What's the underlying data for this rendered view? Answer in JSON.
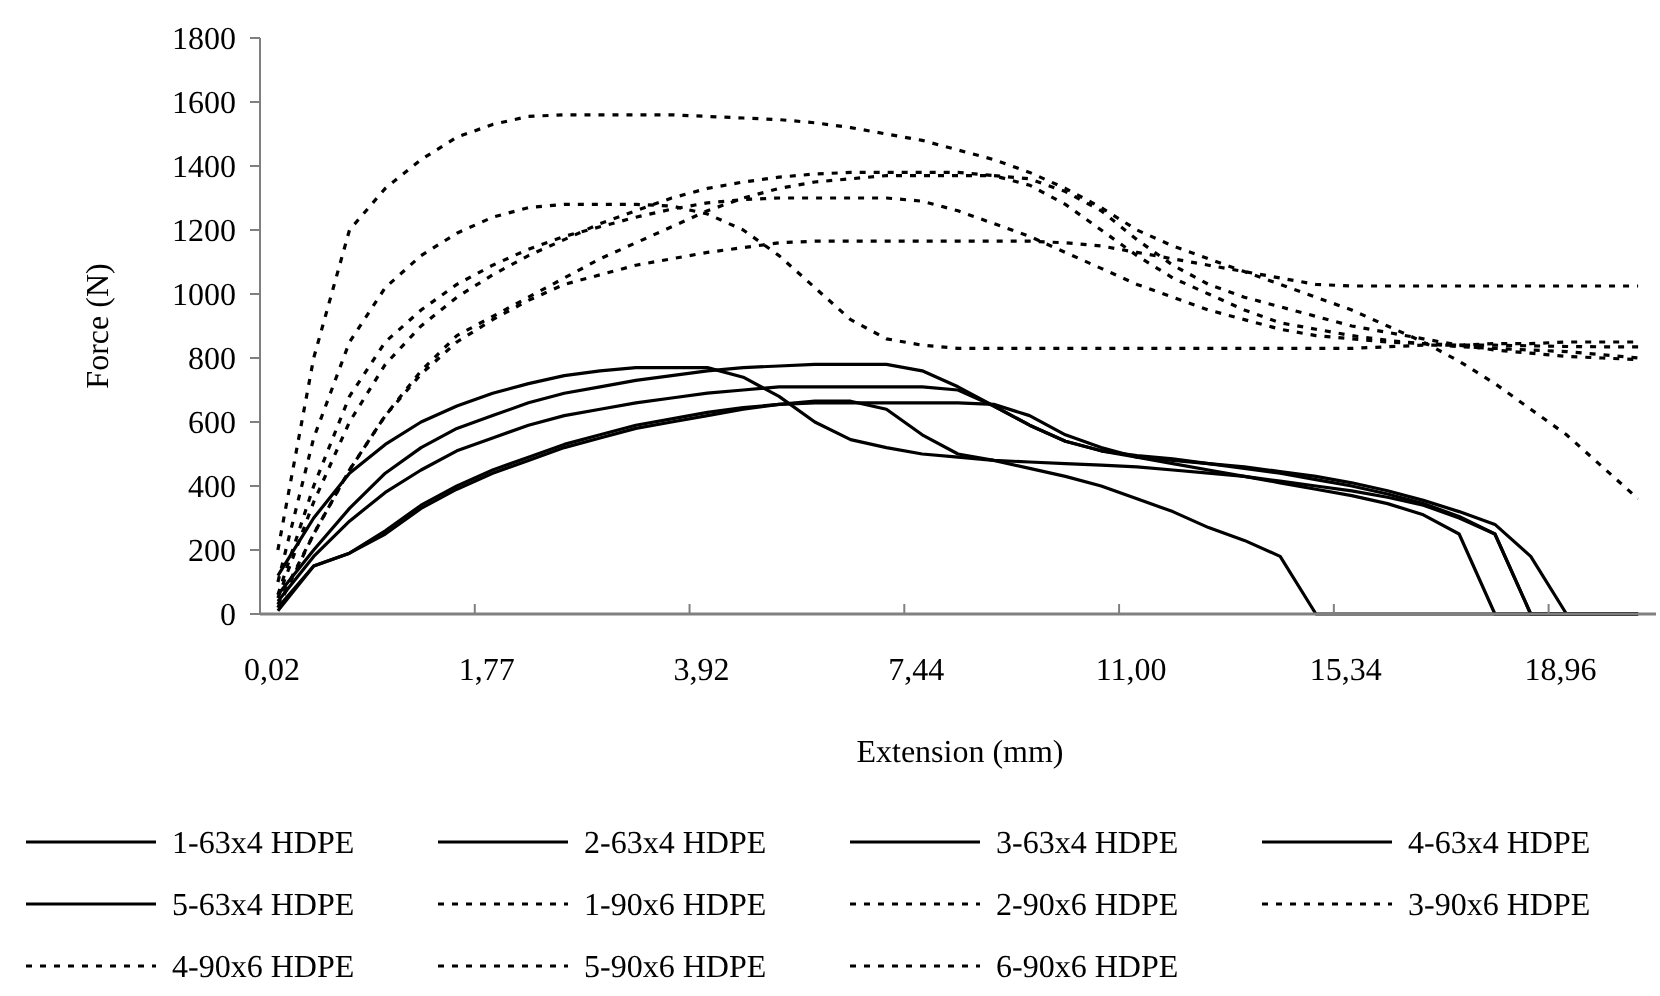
{
  "chart_data": {
    "type": "line",
    "xlabel": "Extension (mm)",
    "ylabel": "Force (N)",
    "categories": [
      "0,02",
      null,
      null,
      null,
      null,
      null,
      "1,77",
      null,
      null,
      null,
      null,
      null,
      "3,92",
      null,
      null,
      null,
      null,
      null,
      "7,44",
      null,
      null,
      null,
      null,
      null,
      "11,00",
      null,
      null,
      null,
      null,
      null,
      "15,34",
      null,
      null,
      null,
      null,
      null,
      "18,96",
      null,
      null
    ],
    "ylim": [
      0,
      1800
    ],
    "yticks": [
      0,
      200,
      400,
      600,
      800,
      1000,
      1200,
      1400,
      1600,
      1800
    ],
    "legend": "bottom",
    "series": [
      {
        "name": "1-63x4 HDPE",
        "color": "#000000",
        "line_style": "solid",
        "values": [
          120,
          300,
          440,
          530,
          600,
          650,
          690,
          720,
          745,
          760,
          770,
          770,
          770,
          740,
          680,
          600,
          545,
          520,
          500,
          490,
          480,
          455,
          430,
          400,
          360,
          320,
          270,
          230,
          180,
          0,
          0,
          0,
          0,
          0,
          0,
          0,
          0,
          0,
          0
        ]
      },
      {
        "name": "2-63x4 HDPE",
        "color": "#000000",
        "line_style": "solid",
        "values": [
          60,
          200,
          330,
          440,
          520,
          580,
          620,
          660,
          690,
          710,
          730,
          745,
          760,
          770,
          775,
          780,
          780,
          780,
          760,
          710,
          650,
          590,
          540,
          510,
          490,
          480,
          470,
          460,
          445,
          430,
          410,
          385,
          355,
          320,
          280,
          180,
          0,
          0,
          0
        ]
      },
      {
        "name": "3-63x4 HDPE",
        "color": "#000000",
        "line_style": "solid",
        "values": [
          40,
          180,
          290,
          380,
          450,
          510,
          550,
          590,
          620,
          640,
          660,
          675,
          690,
          700,
          710,
          710,
          710,
          710,
          710,
          700,
          650,
          590,
          540,
          510,
          495,
          485,
          470,
          455,
          440,
          420,
          400,
          375,
          345,
          305,
          250,
          0,
          0,
          0,
          0
        ]
      },
      {
        "name": "4-63x4 HDPE",
        "color": "#000000",
        "line_style": "solid",
        "values": [
          20,
          150,
          190,
          260,
          340,
          400,
          450,
          490,
          530,
          560,
          590,
          610,
          630,
          645,
          655,
          660,
          660,
          660,
          660,
          660,
          655,
          620,
          560,
          520,
          490,
          470,
          450,
          430,
          410,
          390,
          370,
          345,
          310,
          250,
          0,
          0,
          0,
          0,
          0
        ]
      },
      {
        "name": "5-63x4 HDPE",
        "color": "#000000",
        "line_style": "solid",
        "values": [
          10,
          150,
          190,
          250,
          330,
          390,
          440,
          480,
          520,
          550,
          580,
          600,
          620,
          640,
          655,
          665,
          665,
          640,
          560,
          500,
          480,
          475,
          470,
          465,
          460,
          450,
          440,
          430,
          415,
          400,
          385,
          365,
          340,
          300,
          250,
          0,
          0,
          0,
          0
        ]
      },
      {
        "name": "1-90x6 HDPE",
        "color": "#000000",
        "line_style": "dashed",
        "values": [
          200,
          800,
          1200,
          1330,
          1420,
          1490,
          1530,
          1555,
          1560,
          1560,
          1560,
          1560,
          1555,
          1550,
          1545,
          1535,
          1520,
          1500,
          1480,
          1450,
          1420,
          1380,
          1330,
          1270,
          1200,
          1150,
          1110,
          1070,
          1030,
          990,
          950,
          900,
          850,
          790,
          720,
          640,
          560,
          460,
          360
        ]
      },
      {
        "name": "2-90x6 HDPE",
        "color": "#000000",
        "line_style": "dashed",
        "values": [
          100,
          550,
          850,
          1020,
          1120,
          1190,
          1240,
          1270,
          1280,
          1280,
          1280,
          1275,
          1250,
          1200,
          1120,
          1020,
          920,
          860,
          840,
          830,
          830,
          830,
          830,
          830,
          830,
          830,
          830,
          830,
          830,
          830,
          830,
          835,
          840,
          840,
          845,
          845,
          850,
          850,
          850
        ]
      },
      {
        "name": "3-90x6 HDPE",
        "color": "#000000",
        "line_style": "dashed",
        "values": [
          50,
          350,
          600,
          780,
          900,
          990,
          1060,
          1120,
          1170,
          1220,
          1260,
          1300,
          1330,
          1350,
          1365,
          1375,
          1380,
          1380,
          1380,
          1380,
          1370,
          1340,
          1280,
          1200,
          1120,
          1050,
          1000,
          950,
          910,
          890,
          870,
          855,
          845,
          835,
          830,
          825,
          820,
          810,
          800
        ]
      },
      {
        "name": "4-90x6 HDPE",
        "color": "#000000",
        "line_style": "dashed",
        "values": [
          30,
          250,
          450,
          620,
          760,
          870,
          930,
          990,
          1050,
          1110,
          1160,
          1210,
          1260,
          1300,
          1330,
          1350,
          1360,
          1370,
          1370,
          1370,
          1370,
          1360,
          1320,
          1260,
          1170,
          1090,
          1030,
          990,
          960,
          930,
          900,
          880,
          860,
          840,
          825,
          815,
          805,
          800,
          795
        ]
      },
      {
        "name": "5-90x6 HDPE",
        "color": "#000000",
        "line_style": "dashed",
        "values": [
          20,
          250,
          450,
          620,
          750,
          850,
          920,
          980,
          1030,
          1060,
          1090,
          1110,
          1130,
          1145,
          1160,
          1165,
          1165,
          1165,
          1165,
          1165,
          1165,
          1165,
          1160,
          1150,
          1130,
          1110,
          1090,
          1070,
          1050,
          1030,
          1025,
          1025,
          1025,
          1025,
          1025,
          1025,
          1025,
          1025,
          1025
        ]
      },
      {
        "name": "6-90x6 HDPE",
        "color": "#000000",
        "line_style": "dashed",
        "values": [
          60,
          400,
          680,
          850,
          950,
          1030,
          1090,
          1140,
          1180,
          1210,
          1240,
          1265,
          1285,
          1295,
          1300,
          1300,
          1300,
          1300,
          1290,
          1260,
          1220,
          1180,
          1130,
          1080,
          1030,
          990,
          950,
          920,
          890,
          870,
          860,
          850,
          845,
          840,
          840,
          838,
          836,
          835,
          835
        ]
      }
    ]
  }
}
